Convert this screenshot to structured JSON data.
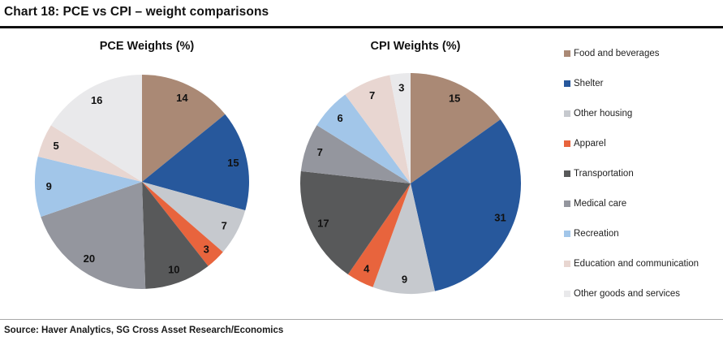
{
  "header": {
    "title": "Chart 18: PCE vs CPI – weight comparisons"
  },
  "source": {
    "text": "Source: Haver Analytics, SG Cross Asset Research/Economics"
  },
  "legend": {
    "position": "right",
    "items": [
      {
        "label": "Food and beverages",
        "color": "#aa8975"
      },
      {
        "label": "Shelter",
        "color": "#27589c"
      },
      {
        "label": "Other housing",
        "color": "#c6c9ce"
      },
      {
        "label": "Apparel",
        "color": "#e8643d"
      },
      {
        "label": "Transportation",
        "color": "#58595a"
      },
      {
        "label": "Medical care",
        "color": "#94969e"
      },
      {
        "label": "Recreation",
        "color": "#a2c6e9"
      },
      {
        "label": "Education and communication",
        "color": "#e8d6d1"
      },
      {
        "label": "Other goods and services",
        "color": "#e9e9eb"
      }
    ]
  },
  "chart_data": [
    {
      "type": "pie",
      "title": "PCE Weights (%)",
      "categories": [
        "Food and beverages",
        "Shelter",
        "Other housing",
        "Apparel",
        "Transportation",
        "Medical care",
        "Recreation",
        "Education and communication",
        "Other goods and services"
      ],
      "values": [
        14,
        15,
        7,
        3,
        10,
        20,
        9,
        5,
        16
      ],
      "value_unit": "%",
      "start_angle_deg": 0,
      "direction": "clockwise",
      "labels": "values-inside",
      "legend_position": "right"
    },
    {
      "type": "pie",
      "title": "CPI Weights (%)",
      "categories": [
        "Food and beverages",
        "Shelter",
        "Other housing",
        "Apparel",
        "Transportation",
        "Medical care",
        "Recreation",
        "Education and communication",
        "Other goods and services"
      ],
      "values": [
        15,
        31,
        9,
        4,
        17,
        7,
        6,
        7,
        3
      ],
      "value_unit": "%",
      "start_angle_deg": 0,
      "direction": "clockwise",
      "labels": "values-inside",
      "legend_position": "right"
    }
  ]
}
